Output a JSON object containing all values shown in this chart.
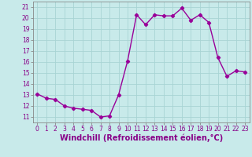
{
  "x": [
    0,
    1,
    2,
    3,
    4,
    5,
    6,
    7,
    8,
    9,
    10,
    11,
    12,
    13,
    14,
    15,
    16,
    17,
    18,
    19,
    20,
    21,
    22,
    23
  ],
  "y": [
    13.1,
    12.7,
    12.6,
    12.0,
    11.8,
    11.7,
    11.6,
    11.0,
    11.1,
    13.0,
    16.1,
    20.3,
    19.4,
    20.3,
    20.2,
    20.2,
    20.9,
    19.8,
    20.3,
    19.6,
    16.4,
    14.7,
    15.2,
    15.1
  ],
  "line_color": "#990099",
  "marker": "D",
  "markersize": 2.2,
  "linewidth": 1.0,
  "bg_color": "#c8eaea",
  "grid_color": "#a8d4d4",
  "xlabel": "Windchill (Refroidissement éolien,°C)",
  "ylim": [
    10.5,
    21.5
  ],
  "xlim": [
    -0.5,
    23.5
  ],
  "yticks": [
    11,
    12,
    13,
    14,
    15,
    16,
    17,
    18,
    19,
    20,
    21
  ],
  "xticks": [
    0,
    1,
    2,
    3,
    4,
    5,
    6,
    7,
    8,
    9,
    10,
    11,
    12,
    13,
    14,
    15,
    16,
    17,
    18,
    19,
    20,
    21,
    22,
    23
  ],
  "tick_fontsize": 5.5,
  "xlabel_fontsize": 7.0,
  "tick_color": "#880088",
  "spine_color": "#888888"
}
